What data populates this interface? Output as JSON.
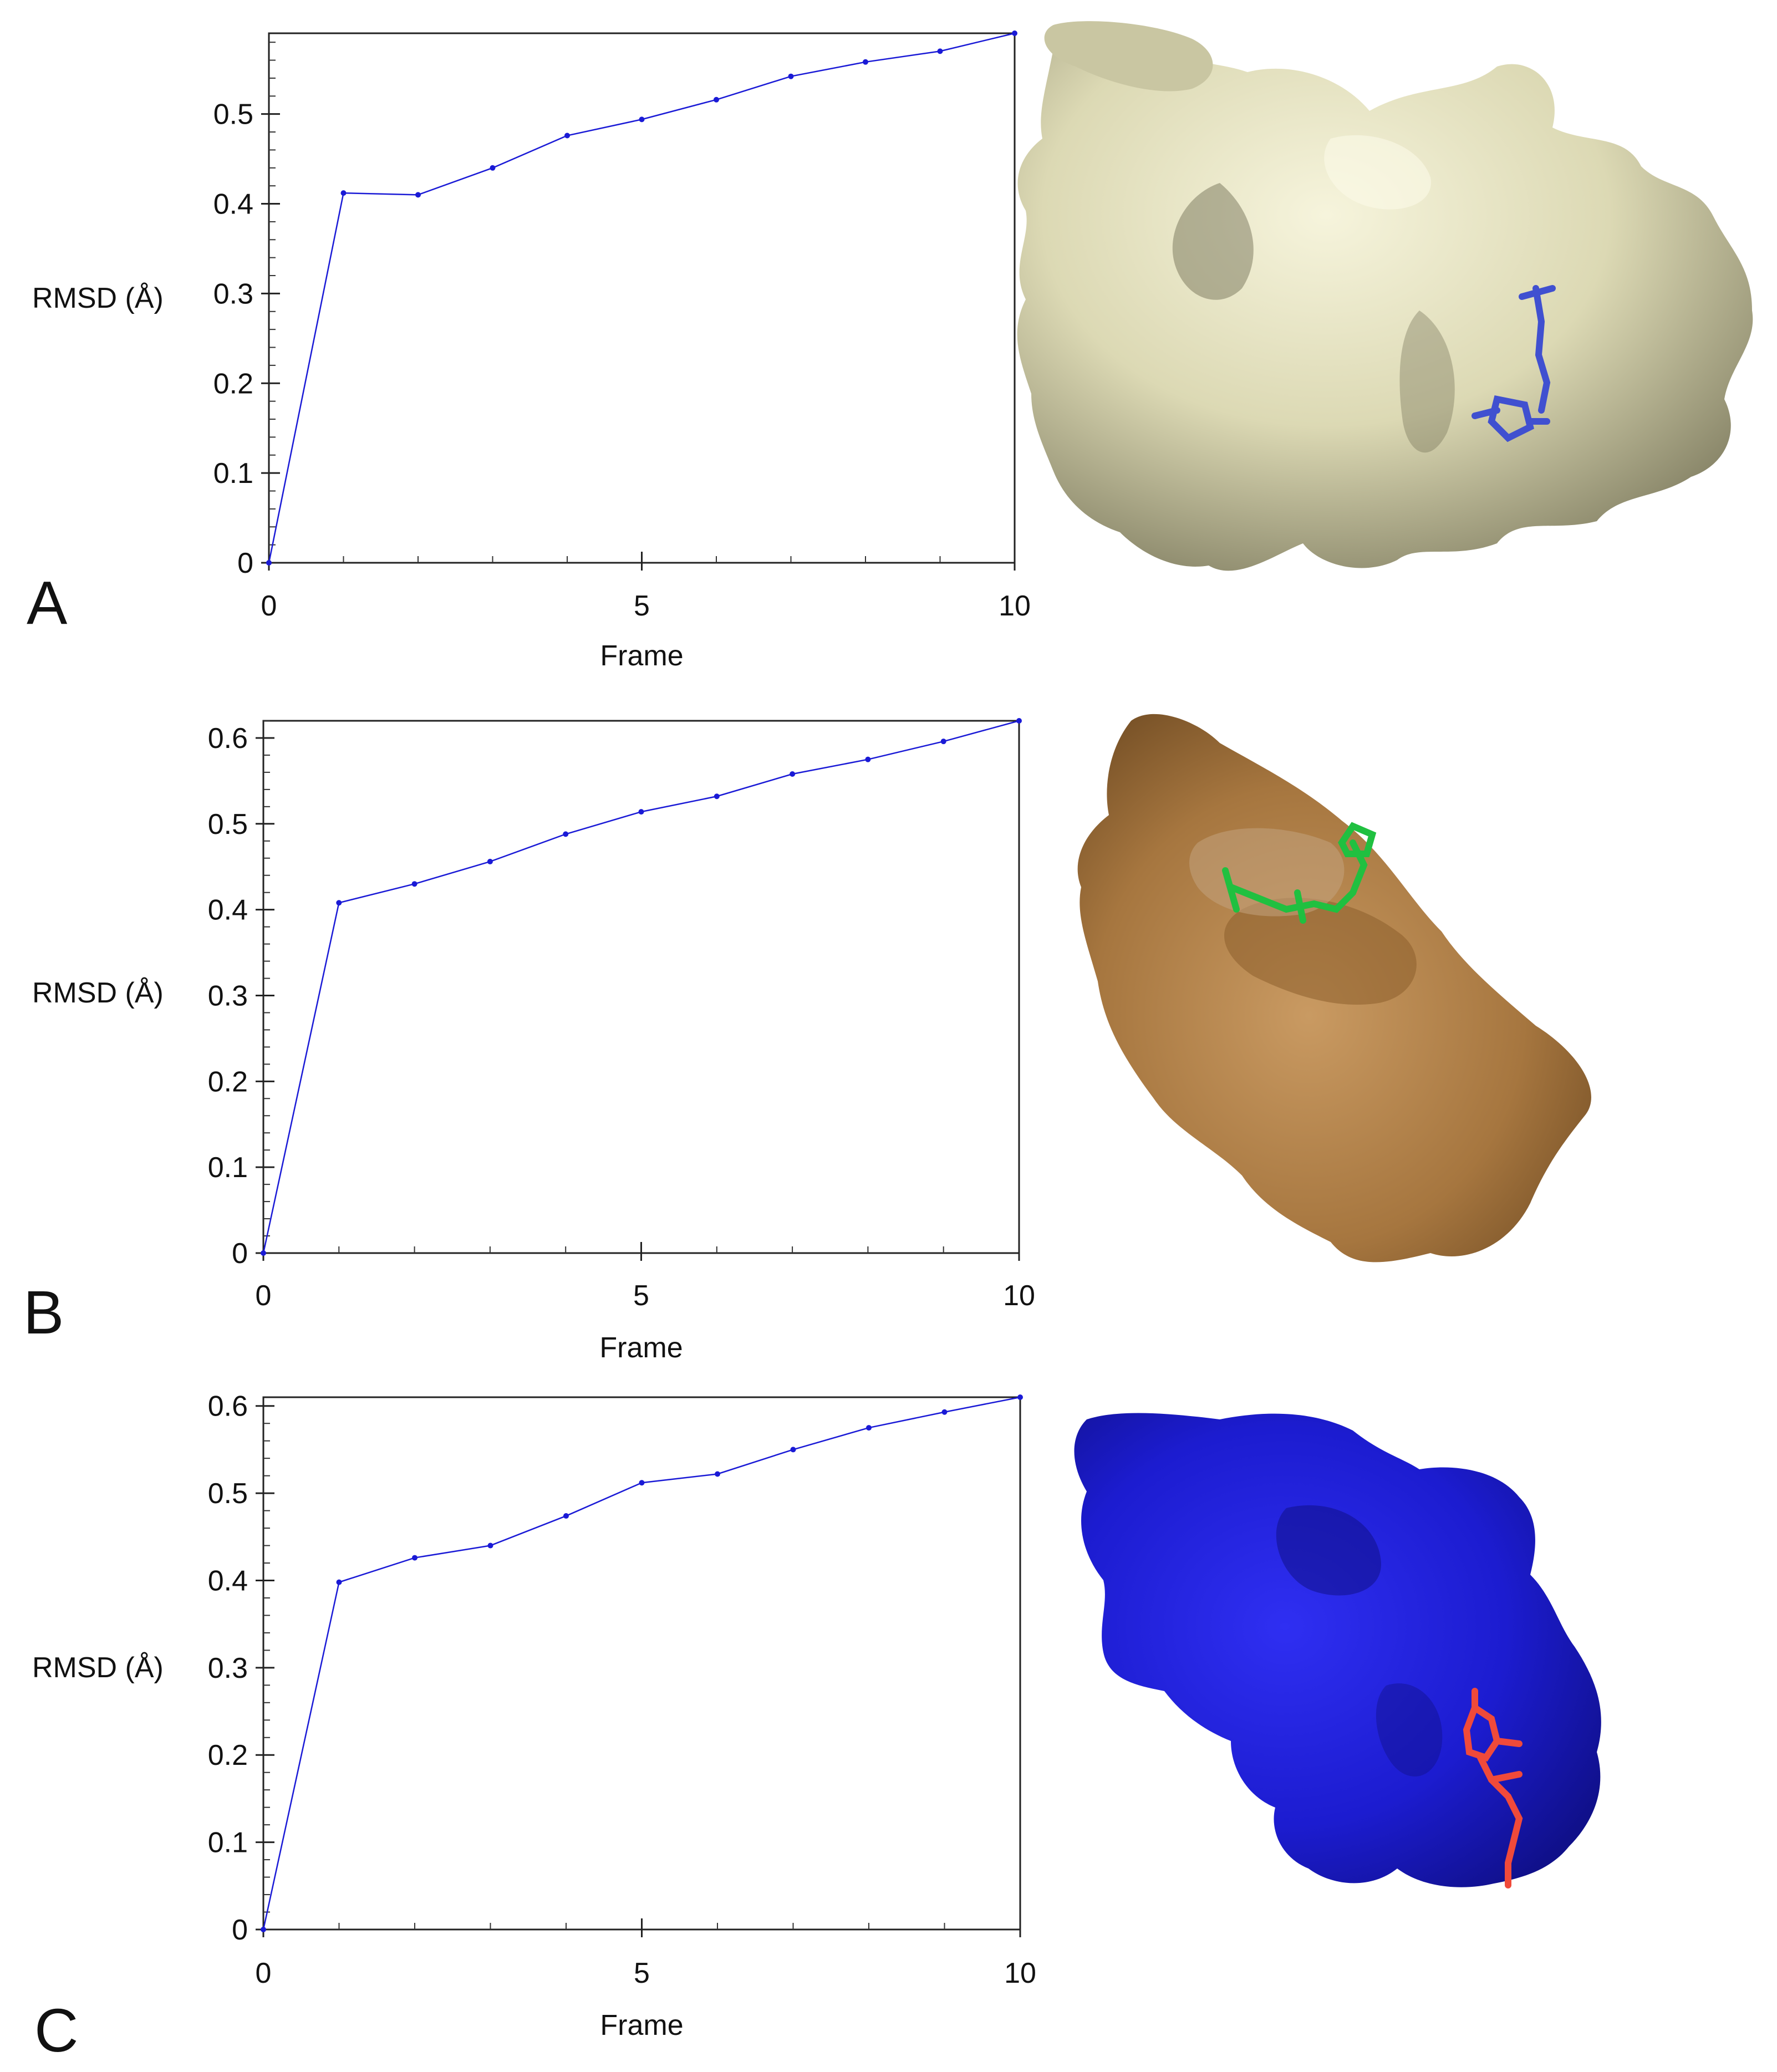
{
  "chart_data": [
    {
      "panel": "A",
      "type": "line",
      "xlabel": "Frame",
      "ylabel": "RMSD (Å)",
      "xlim": [
        0,
        10
      ],
      "ylim": [
        0,
        0.59
      ],
      "xticks": [
        0,
        5,
        10
      ],
      "yticks": [
        0,
        0.1,
        0.2,
        0.3,
        0.4,
        0.5
      ],
      "grid": false,
      "x": [
        0,
        1,
        2,
        3,
        4,
        5,
        6,
        7,
        8,
        9,
        10
      ],
      "series": [
        {
          "values": [
            0,
            0.412,
            0.41,
            0.44,
            0.476,
            0.494,
            0.516,
            0.542,
            0.558,
            0.57,
            0.59
          ]
        }
      ],
      "colors": {
        "line": "#1a1ad6",
        "surface": "#e8e6c6",
        "ligand": "#4050d0"
      }
    },
    {
      "panel": "B",
      "type": "line",
      "xlabel": "Frame",
      "ylabel": "RMSD (Å)",
      "xlim": [
        0,
        10
      ],
      "ylim": [
        0,
        0.62
      ],
      "xticks": [
        0,
        5,
        10
      ],
      "yticks": [
        0,
        0.1,
        0.2,
        0.3,
        0.4,
        0.5,
        0.6
      ],
      "grid": false,
      "x": [
        0,
        1,
        2,
        3,
        4,
        5,
        6,
        7,
        8,
        9,
        10
      ],
      "series": [
        {
          "values": [
            0,
            0.408,
            0.43,
            0.456,
            0.488,
            0.514,
            0.532,
            0.558,
            0.575,
            0.596,
            0.62
          ]
        }
      ],
      "colors": {
        "line": "#1a1ad6",
        "surface": "#b8864e",
        "ligand": "#20c040"
      }
    },
    {
      "panel": "C",
      "type": "line",
      "xlabel": "Frame",
      "ylabel": "RMSD (Å)",
      "xlim": [
        0,
        10
      ],
      "ylim": [
        0,
        0.61
      ],
      "xticks": [
        0,
        5,
        10
      ],
      "yticks": [
        0,
        0.1,
        0.2,
        0.3,
        0.4,
        0.5,
        0.6
      ],
      "grid": false,
      "x": [
        0,
        1,
        2,
        3,
        4,
        5,
        6,
        7,
        8,
        9,
        10
      ],
      "series": [
        {
          "values": [
            0,
            0.398,
            0.426,
            0.44,
            0.474,
            0.512,
            0.522,
            0.55,
            0.575,
            0.593,
            0.61
          ]
        }
      ],
      "colors": {
        "line": "#1a1ad6",
        "surface": "#2424e0",
        "ligand": "#f04a3a"
      }
    }
  ]
}
